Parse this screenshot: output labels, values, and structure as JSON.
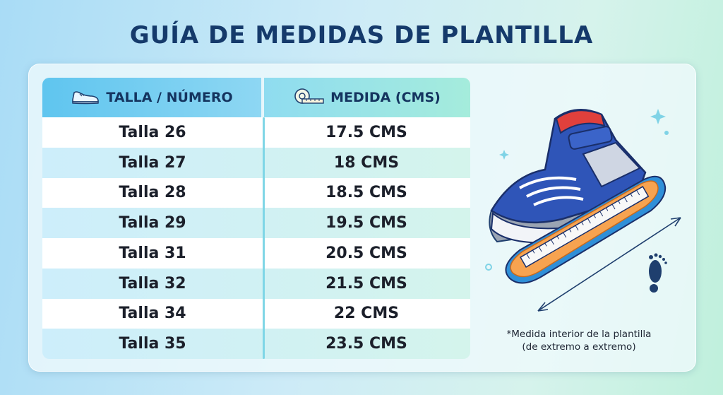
{
  "title": "GUÍA DE MEDIDAS DE PLANTILLA",
  "table": {
    "headers": {
      "size": "TALLA / NÚMERO",
      "size_icon": "sneaker-icon",
      "measure": "MEDIDA (CMS)",
      "measure_icon": "measuring-tape-icon"
    },
    "rows": [
      {
        "size": "Talla 26",
        "measure": "17.5 CMS"
      },
      {
        "size": "Talla 27",
        "measure": "18 CMS"
      },
      {
        "size": "Talla 28",
        "measure": "18.5 CMS"
      },
      {
        "size": "Talla 29",
        "measure": "19.5 CMS"
      },
      {
        "size": "Talla 31",
        "measure": "20.5 CMS"
      },
      {
        "size": "Talla 32",
        "measure": "21.5 CMS"
      },
      {
        "size": "Talla 34",
        "measure": "22 CMS"
      },
      {
        "size": "Talla 35",
        "measure": "23.5 CMS"
      }
    ]
  },
  "note": {
    "line1": "*Medida interior de la plantilla",
    "line2": "(de extremo a extremo)"
  },
  "colors": {
    "title": "#153a6b",
    "header_left": "#5fc5ef",
    "header_right": "#a5ecdc",
    "shoe_blue": "#2f55b8",
    "shoe_red": "#e0403c",
    "insole_orange": "#f7a350"
  }
}
